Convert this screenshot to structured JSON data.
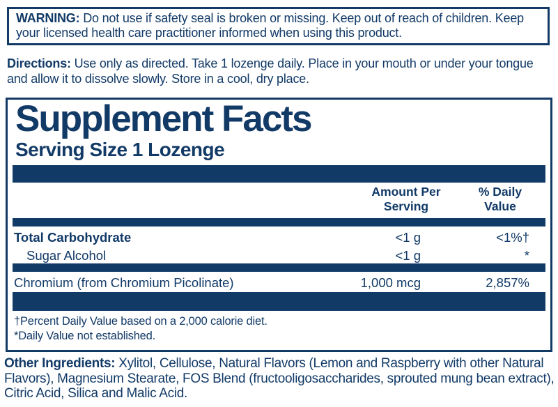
{
  "colors": {
    "navy": "#123a67",
    "background": "#ffffff"
  },
  "warning": {
    "label": "WARNING:",
    "text": "Do not use if safety seal is broken or missing. Keep out of reach of children. Keep your licensed health care practitioner informed when using this product."
  },
  "directions": {
    "label": "Directions:",
    "text": "Use only as directed. Take 1 lozenge daily. Place in your mouth or under your tongue and allow it to dissolve slowly. Store in a cool, dry place."
  },
  "supplement_facts": {
    "title": "Supplement Facts",
    "serving_size": "Serving Size 1 Lozenge",
    "columns": {
      "amount": "Amount Per\nServing",
      "daily_value": "% Daily\nValue"
    },
    "rows": [
      {
        "name": "Total Carbohydrate",
        "amount": "<1 g",
        "daily_value": "<1%†"
      },
      {
        "name": "Sugar Alcohol",
        "amount": "<1 g",
        "daily_value": "*"
      },
      {
        "name": "Chromium (from Chromium Picolinate)",
        "amount": "1,000 mcg",
        "daily_value": "2,857%"
      }
    ],
    "footnotes": [
      "†Percent Daily Value based on a 2,000 calorie diet.",
      "*Daily Value not established."
    ]
  },
  "other_ingredients": {
    "label": "Other Ingredients:",
    "text": "Xylitol, Cellulose, Natural Flavors (Lemon and Raspberry with other Natural Flavors), Magnesium Stearate, FOS Blend (fructooligosaccharides, sprouted mung bean extract), Citric Acid, Silica and Malic Acid."
  }
}
